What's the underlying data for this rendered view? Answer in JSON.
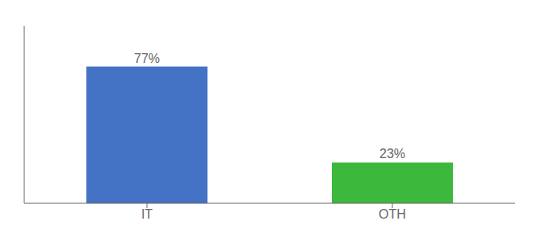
{
  "chart_data": {
    "type": "bar",
    "categories": [
      "IT",
      "OTH"
    ],
    "values": [
      77,
      23
    ],
    "value_labels": [
      "77%",
      "23%"
    ],
    "colors": [
      "#4472C4",
      "#3CB93C"
    ],
    "ylim": [
      0,
      100
    ],
    "grid": false,
    "data_labels": true,
    "tick_labels": "x"
  }
}
